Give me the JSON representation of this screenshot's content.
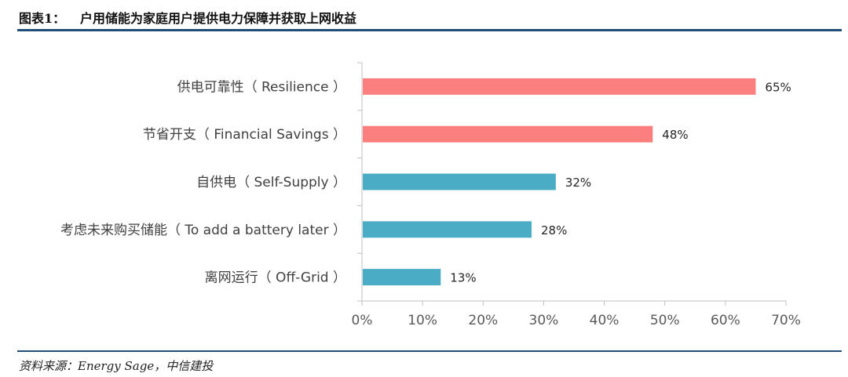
{
  "header": {
    "figure_label": "图表1：",
    "title": "户用储能为家庭用户提供电力保障并获取上网收益"
  },
  "source": "资料来源：Energy Sage，中信建投",
  "chart_data": {
    "type": "bar",
    "orientation": "horizontal",
    "title": "户用储能为家庭用户提供电力保障并获取上网收益",
    "categories": [
      "供电可靠性（ Resilience ）",
      "节省开支（ Financial Savings ）",
      "自供电（ Self-Supply ）",
      "考虑未来购买储能（ To add a battery later ）",
      "离网运行（ Off-Grid ）"
    ],
    "values": [
      65,
      48,
      32,
      28,
      13
    ],
    "data_labels": [
      "65%",
      "48%",
      "32%",
      "28%",
      "13%"
    ],
    "bar_colors": [
      "#fb7f7f",
      "#fb7f7f",
      "#4bacc6",
      "#4bacc6",
      "#4bacc6"
    ],
    "xlim": [
      0,
      70
    ],
    "xticks": [
      0,
      10,
      20,
      30,
      40,
      50,
      60,
      70
    ],
    "xtick_labels": [
      "0%",
      "10%",
      "20%",
      "30%",
      "40%",
      "50%",
      "60%",
      "70%"
    ],
    "xlabel": "",
    "ylabel": "",
    "grid": false,
    "legend": "none"
  }
}
